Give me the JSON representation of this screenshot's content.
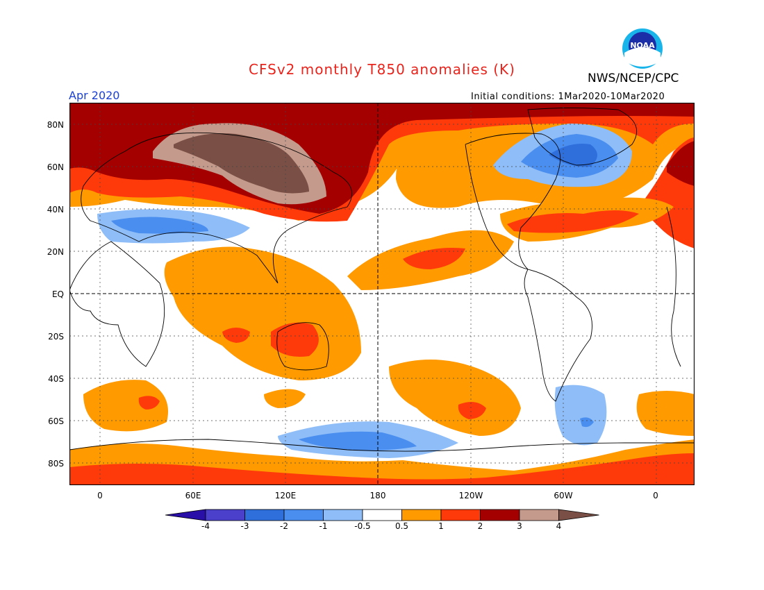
{
  "title": "CFSv2 monthly T850 anomalies (K)",
  "agency": "NWS/NCEP/CPC",
  "logo_text": "NOAA",
  "valid_month": "Apr 2020",
  "initial_conditions": "Initial conditions: 1Mar2020-10Mar2020",
  "lat_labels": [
    "80N",
    "60N",
    "40N",
    "20N",
    "EQ",
    "20S",
    "40S",
    "60S",
    "80S"
  ],
  "lon_labels": [
    "0",
    "60E",
    "120E",
    "180",
    "120W",
    "60W",
    "0"
  ],
  "colorbar": {
    "labels": [
      "-4",
      "-3",
      "-2",
      "-1",
      "-0.5",
      "0.5",
      "1",
      "2",
      "3",
      "4"
    ],
    "colors": [
      "#2a0ea8",
      "#4a40cc",
      "#2f6fdc",
      "#4a8ef0",
      "#8ebdf7",
      "#ffffff",
      "#ff9a00",
      "#ff3a0a",
      "#a50000",
      "#c49a8c",
      "#7a4f45"
    ]
  }
}
